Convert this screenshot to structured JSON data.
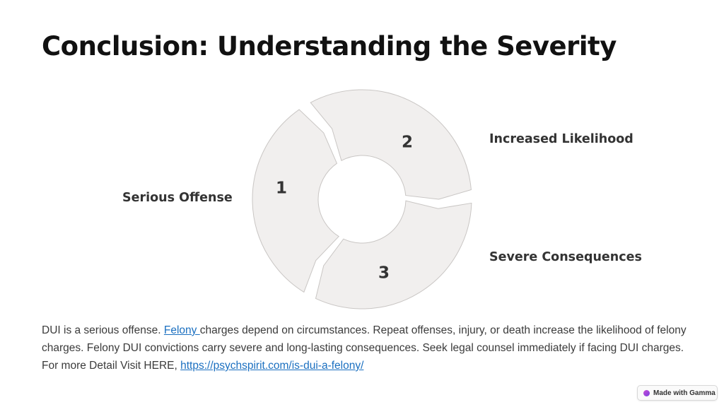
{
  "slide": {
    "title": "Conclusion: Understanding the Severity"
  },
  "cycle": {
    "segments": [
      {
        "number": "1",
        "label": "Serious Offense"
      },
      {
        "number": "2",
        "label": "Increased Likelihood"
      },
      {
        "number": "3",
        "label": "Severe Consequences"
      }
    ],
    "fill_color": "#f1efee",
    "stroke_color": "#c9c6c4"
  },
  "body": {
    "line1_pre": "DUI is a serious offense. ",
    "felony_link": "Felony ",
    "line1_post": "charges depend on circumstances. Repeat offenses, injury, or death increase the likelihood of felony charges. Felony DUI convictions carry severe and long-lasting consequences. Seek legal counsel immediately if facing DUI charges.",
    "line3_pre": "For more Detail Visit HERE, ",
    "url_link": "https://psychspirit.com/is-dui-a-felony/"
  },
  "badge": {
    "label": "Made with Gamma",
    "icon": "gamma-logo-icon"
  }
}
